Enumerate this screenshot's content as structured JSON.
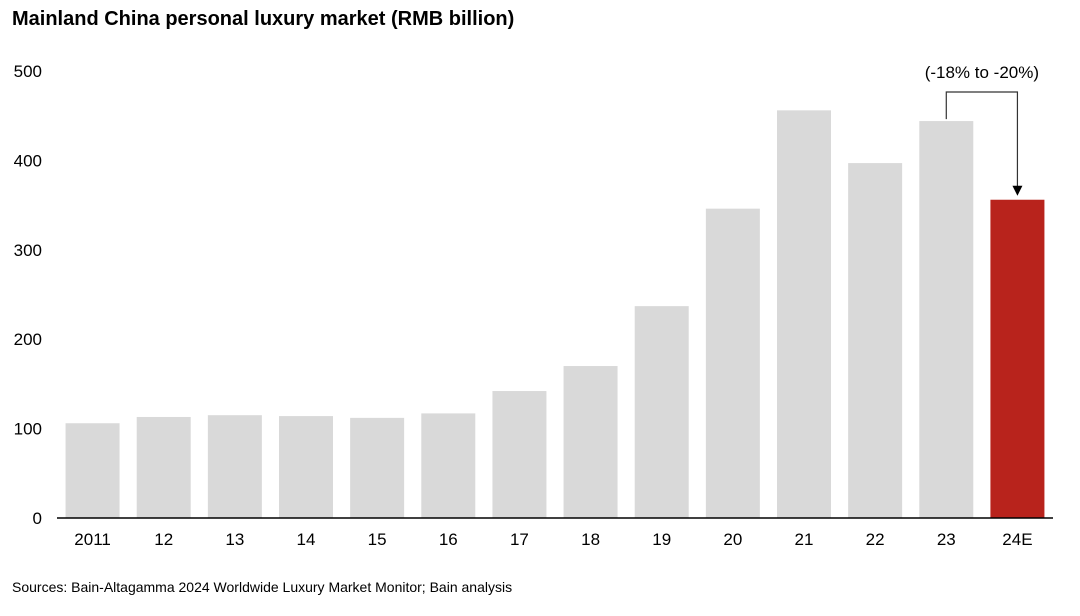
{
  "title": "Mainland China personal luxury market (RMB billion)",
  "source": "Sources: Bain-Altagamma 2024 Worldwide Luxury Market Monitor; Bain analysis",
  "chart_data": {
    "type": "bar",
    "title": "Mainland China personal luxury market (RMB billion)",
    "categories": [
      "2011",
      "12",
      "13",
      "14",
      "15",
      "16",
      "17",
      "18",
      "19",
      "20",
      "21",
      "22",
      "23",
      "24E"
    ],
    "values": [
      106,
      113,
      115,
      114,
      112,
      117,
      142,
      170,
      237,
      346,
      456,
      397,
      444,
      356
    ],
    "ylim": [
      0,
      500
    ],
    "yticks": [
      0,
      100,
      200,
      300,
      400,
      500
    ],
    "grid": false,
    "colors": {
      "bar": "#d9d9d9",
      "highlight": "#b8231c",
      "axis": "#000000"
    },
    "highlight_category": "24E",
    "annotation": {
      "text": "(-18% to -20%)",
      "from_category": "23",
      "to_category": "24E"
    }
  }
}
